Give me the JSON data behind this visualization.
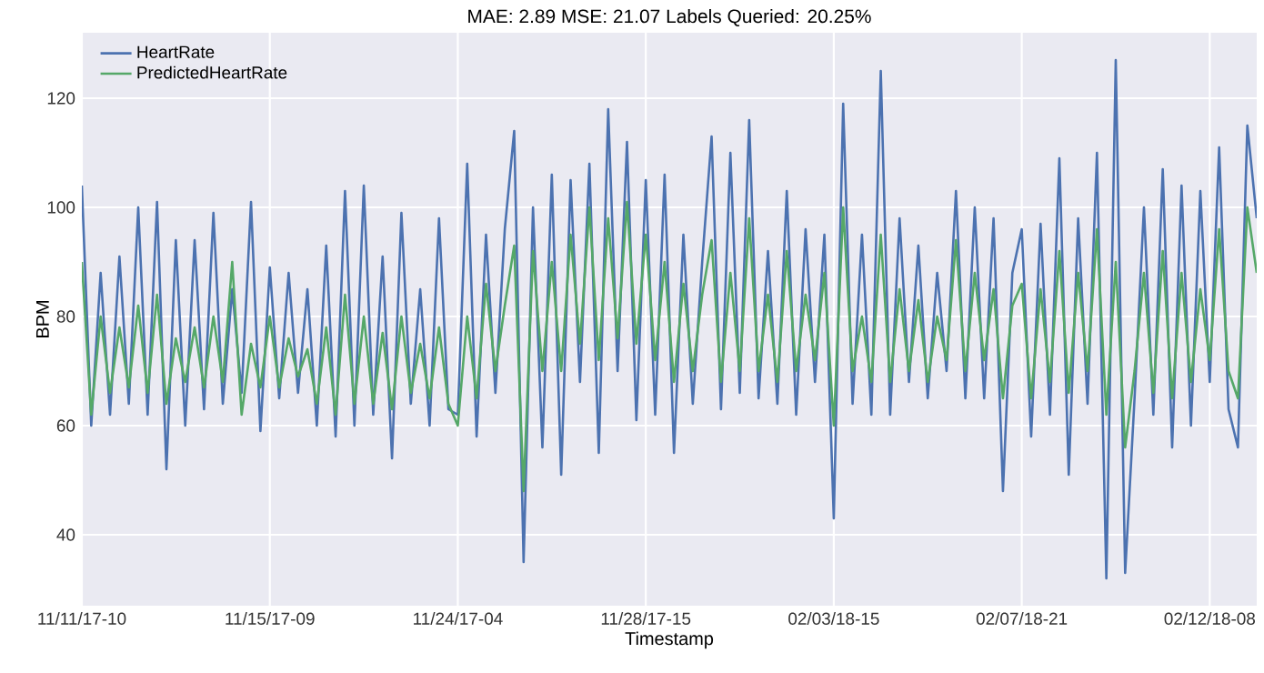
{
  "chart_data": {
    "type": "line",
    "title": "MAE: 2.89    MSE: 21.07    Labels Queried: 20.25%",
    "xlabel": "Timestamp",
    "ylabel": "BPM",
    "categories": [
      "11/11/17-10",
      null,
      null,
      null,
      null,
      null,
      null,
      null,
      null,
      null,
      null,
      null,
      null,
      null,
      null,
      null,
      null,
      null,
      null,
      null,
      "11/15/17-09",
      null,
      null,
      null,
      null,
      null,
      null,
      null,
      null,
      null,
      null,
      null,
      null,
      null,
      null,
      null,
      null,
      null,
      null,
      null,
      "11/24/17-04",
      null,
      null,
      null,
      null,
      null,
      null,
      null,
      null,
      null,
      null,
      null,
      null,
      null,
      null,
      null,
      null,
      null,
      null,
      null,
      "11/28/17-15",
      null,
      null,
      null,
      null,
      null,
      null,
      null,
      null,
      null,
      null,
      null,
      null,
      null,
      null,
      null,
      null,
      null,
      null,
      null,
      "02/03/18-15",
      null,
      null,
      null,
      null,
      null,
      null,
      null,
      null,
      null,
      null,
      null,
      null,
      null,
      null,
      null,
      null,
      null,
      null,
      null,
      "02/07/18-21",
      null,
      null,
      null,
      null,
      null,
      null,
      null,
      null,
      null,
      null,
      null,
      null,
      null,
      null,
      null,
      null,
      null,
      null,
      null,
      "02/12/18-08",
      null,
      null,
      null,
      null,
      null
    ],
    "series": [
      {
        "name": "HeartRate",
        "color": "#4c72b0",
        "values": [
          104,
          60,
          88,
          62,
          91,
          64,
          100,
          62,
          101,
          52,
          94,
          60,
          94,
          63,
          99,
          64,
          85,
          66,
          101,
          59,
          89,
          65,
          88,
          66,
          85,
          60,
          93,
          58,
          103,
          60,
          104,
          62,
          91,
          54,
          99,
          64,
          85,
          60,
          98,
          63,
          62,
          108,
          58,
          95,
          66,
          96,
          114,
          35,
          100,
          56,
          106,
          51,
          105,
          68,
          108,
          55,
          118,
          70,
          112,
          61,
          105,
          62,
          106,
          55,
          95,
          64,
          90,
          113,
          63,
          110,
          66,
          116,
          65,
          92,
          64,
          103,
          62,
          96,
          68,
          95,
          43,
          119,
          64,
          95,
          62,
          125,
          62,
          98,
          68,
          93,
          65,
          88,
          70,
          103,
          65,
          100,
          65,
          98,
          48,
          88,
          96,
          58,
          97,
          62,
          109,
          51,
          98,
          64,
          110,
          32,
          127,
          33,
          65,
          100,
          62,
          107,
          56,
          104,
          60,
          103,
          68,
          111,
          63,
          56,
          115,
          98
        ]
      },
      {
        "name": "PredictedHeartRate",
        "color": "#55a868",
        "values": [
          90,
          62,
          80,
          66,
          78,
          67,
          82,
          66,
          84,
          64,
          76,
          68,
          78,
          67,
          80,
          68,
          90,
          62,
          75,
          67,
          80,
          67,
          76,
          69,
          74,
          64,
          78,
          62,
          84,
          64,
          80,
          64,
          77,
          63,
          80,
          66,
          75,
          65,
          78,
          64,
          60,
          80,
          65,
          86,
          70,
          82,
          93,
          48,
          92,
          70,
          90,
          70,
          95,
          75,
          100,
          72,
          98,
          76,
          101,
          75,
          95,
          72,
          90,
          68,
          86,
          70,
          84,
          94,
          68,
          88,
          70,
          98,
          70,
          84,
          68,
          92,
          70,
          84,
          72,
          88,
          60,
          100,
          70,
          80,
          68,
          95,
          68,
          85,
          70,
          83,
          68,
          80,
          72,
          94,
          70,
          88,
          72,
          85,
          65,
          82,
          86,
          65,
          85,
          68,
          92,
          66,
          88,
          70,
          96,
          62,
          90,
          56,
          70,
          88,
          66,
          92,
          65,
          88,
          68,
          85,
          72,
          96,
          70,
          65,
          100,
          88
        ]
      }
    ],
    "ylim": [
      27,
      132
    ],
    "yticks": [
      40,
      60,
      80,
      100,
      120
    ],
    "grid": true,
    "legend": "top left",
    "line_style": "solid",
    "marker": "none"
  }
}
